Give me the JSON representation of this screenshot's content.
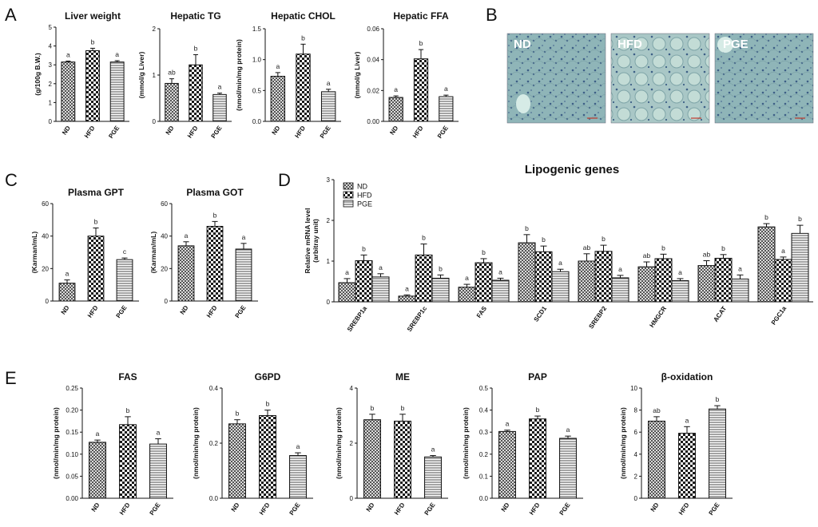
{
  "panels": {
    "A": "A",
    "B": "B",
    "C": "C",
    "D": "D",
    "E": "E"
  },
  "colors": {
    "bar_fill": "#ffffff",
    "stroke": "#111111",
    "tissue": "#8fb5b8"
  },
  "micrographs": {
    "labels": [
      "ND",
      "HFD",
      "PGE"
    ]
  },
  "chart_data": [
    {
      "id": "liver-weight",
      "type": "bar",
      "title": "Liver weight",
      "ylabel": "(g/100g B.W.)",
      "ylim": [
        0,
        5
      ],
      "yticks": [
        "0",
        "1",
        "2",
        "3",
        "4",
        "5"
      ],
      "categories": [
        "ND",
        "HFD",
        "PGE"
      ],
      "values": [
        3.15,
        3.75,
        3.15
      ],
      "errors": [
        0.05,
        0.13,
        0.07
      ],
      "letters": [
        "a",
        "b",
        "a"
      ]
    },
    {
      "id": "hepatic-tg",
      "type": "bar",
      "title": "Hepatic TG",
      "ylabel": "(mmol/g Liver)",
      "ylim": [
        0,
        2
      ],
      "yticks": [
        "0",
        "1",
        "2"
      ],
      "categories": [
        "ND",
        "HFD",
        "PGE"
      ],
      "values": [
        0.82,
        1.22,
        0.58
      ],
      "errors": [
        0.1,
        0.22,
        0.03
      ],
      "letters": [
        "ab",
        "b",
        "a"
      ]
    },
    {
      "id": "hepatic-chol",
      "type": "bar",
      "title": "Hepatic CHOL",
      "ylabel": "(nmol/min/mg protein)",
      "ylim": [
        0,
        1.5
      ],
      "yticks": [
        "0.0",
        "0.5",
        "1.0",
        "1.5"
      ],
      "categories": [
        "ND",
        "HFD",
        "PGE"
      ],
      "values": [
        0.73,
        1.09,
        0.48
      ],
      "errors": [
        0.06,
        0.16,
        0.04
      ],
      "letters": [
        "a",
        "b",
        "a"
      ]
    },
    {
      "id": "hepatic-ffa",
      "type": "bar",
      "title": "Hepatic FFA",
      "ylabel": "(mmol/g Liver)",
      "ylim": [
        0,
        0.06
      ],
      "yticks": [
        "0.00",
        "0.02",
        "0.04",
        "0.06"
      ],
      "categories": [
        "ND",
        "HFD",
        "PGE"
      ],
      "values": [
        0.0155,
        0.0405,
        0.016
      ],
      "errors": [
        0.001,
        0.006,
        0.001
      ],
      "letters": [
        "a",
        "b",
        "a"
      ]
    },
    {
      "id": "plasma-gpt",
      "type": "bar",
      "title": "Plasma GPT",
      "ylabel": "(Karman/mL)",
      "ylim": [
        0,
        60
      ],
      "yticks": [
        "0",
        "20",
        "40",
        "60"
      ],
      "categories": [
        "ND",
        "HFD",
        "PGE"
      ],
      "values": [
        11,
        40,
        25.5
      ],
      "errors": [
        2,
        5,
        1
      ],
      "letters": [
        "a",
        "b",
        "c"
      ]
    },
    {
      "id": "plasma-got",
      "type": "bar",
      "title": "Plasma GOT",
      "ylabel": "(Karman/mL)",
      "ylim": [
        0,
        60
      ],
      "yticks": [
        "0",
        "20",
        "40",
        "60"
      ],
      "categories": [
        "ND",
        "HFD",
        "PGE"
      ],
      "values": [
        34,
        46,
        32
      ],
      "errors": [
        2.5,
        3,
        3.5
      ],
      "letters": [
        "a",
        "b",
        "a"
      ]
    },
    {
      "id": "lipogenic-genes",
      "type": "bar",
      "title": "Lipogenic genes",
      "ylabel": "Relative mRNA level",
      "ylabel2": "(arbitray unit)",
      "ylim": [
        0,
        3
      ],
      "yticks": [
        "0",
        "1",
        "2",
        "3"
      ],
      "categories": [
        "SREBP1a",
        "SREBP1c",
        "FAS",
        "SCD1",
        "SREBP2",
        "HMGCR",
        "ACAT",
        "PGC1a"
      ],
      "legend": [
        "ND",
        "HFD",
        "PGE"
      ],
      "series": [
        {
          "name": "ND",
          "values": [
            0.47,
            0.14,
            0.36,
            1.45,
            1.0,
            0.86,
            0.89,
            1.84
          ],
          "errors": [
            0.1,
            0.03,
            0.07,
            0.2,
            0.18,
            0.12,
            0.12,
            0.08
          ],
          "letters": [
            "a",
            "a",
            "a",
            "b",
            "ab",
            "ab",
            "ab",
            "b"
          ]
        },
        {
          "name": "HFD",
          "values": [
            1.01,
            1.15,
            0.96,
            1.23,
            1.24,
            1.06,
            1.07,
            1.04
          ],
          "errors": [
            0.14,
            0.27,
            0.1,
            0.14,
            0.15,
            0.11,
            0.09,
            0.06
          ],
          "letters": [
            "b",
            "b",
            "b",
            "b",
            "b",
            "b",
            "b",
            "a"
          ]
        },
        {
          "name": "PGE",
          "values": [
            0.61,
            0.58,
            0.53,
            0.74,
            0.59,
            0.52,
            0.56,
            1.68
          ],
          "errors": [
            0.08,
            0.08,
            0.05,
            0.06,
            0.06,
            0.05,
            0.1,
            0.2
          ],
          "letters": [
            "a",
            "b",
            "a",
            "a",
            "a",
            "a",
            "a",
            "b"
          ]
        }
      ]
    },
    {
      "id": "fas",
      "type": "bar",
      "title": "FAS",
      "ylabel": "(nmol/min/mg protein)",
      "ylim": [
        0,
        0.25
      ],
      "yticks": [
        "0.00",
        "0.05",
        "0.10",
        "0.15",
        "0.20",
        "0.25"
      ],
      "categories": [
        "ND",
        "HFD",
        "PGE"
      ],
      "values": [
        0.127,
        0.167,
        0.123
      ],
      "errors": [
        0.005,
        0.018,
        0.012
      ],
      "letters": [
        "a",
        "b",
        "a"
      ]
    },
    {
      "id": "g6pd",
      "type": "bar",
      "title": "G6PD",
      "ylabel": "(nmol/min/mg protein)",
      "ylim": [
        0,
        0.4
      ],
      "yticks": [
        "0.0",
        "0.2",
        "0.4"
      ],
      "categories": [
        "ND",
        "HFD",
        "PGE"
      ],
      "values": [
        0.27,
        0.3,
        0.155
      ],
      "errors": [
        0.015,
        0.02,
        0.01
      ],
      "letters": [
        "b",
        "b",
        "a"
      ]
    },
    {
      "id": "me",
      "type": "bar",
      "title": "ME",
      "ylabel": "(nmol/min/mg protein)",
      "ylim": [
        0,
        4
      ],
      "yticks": [
        "0",
        "2",
        "4"
      ],
      "categories": [
        "ND",
        "HFD",
        "PGE"
      ],
      "values": [
        2.85,
        2.8,
        1.5
      ],
      "errors": [
        0.2,
        0.25,
        0.05
      ],
      "letters": [
        "b",
        "b",
        "a"
      ]
    },
    {
      "id": "pap",
      "type": "bar",
      "title": "PAP",
      "ylabel": "(nmol/min/mg protein)",
      "ylim": [
        0,
        0.5
      ],
      "yticks": [
        "0.0",
        "0.1",
        "0.2",
        "0.3",
        "0.4",
        "0.5"
      ],
      "categories": [
        "ND",
        "HFD",
        "PGE"
      ],
      "values": [
        0.303,
        0.36,
        0.272
      ],
      "errors": [
        0.006,
        0.013,
        0.01
      ],
      "letters": [
        "a",
        "b",
        "a"
      ]
    },
    {
      "id": "beta-oxidation",
      "type": "bar",
      "title": "β-oxidation",
      "ylabel": "(nmol/min/mg protein)",
      "ylim": [
        0,
        10
      ],
      "yticks": [
        "0",
        "2",
        "4",
        "6",
        "8",
        "10"
      ],
      "categories": [
        "ND",
        "HFD",
        "PGE"
      ],
      "values": [
        7.0,
        5.9,
        8.1
      ],
      "errors": [
        0.4,
        0.6,
        0.3
      ],
      "letters": [
        "ab",
        "a",
        "b"
      ]
    }
  ]
}
